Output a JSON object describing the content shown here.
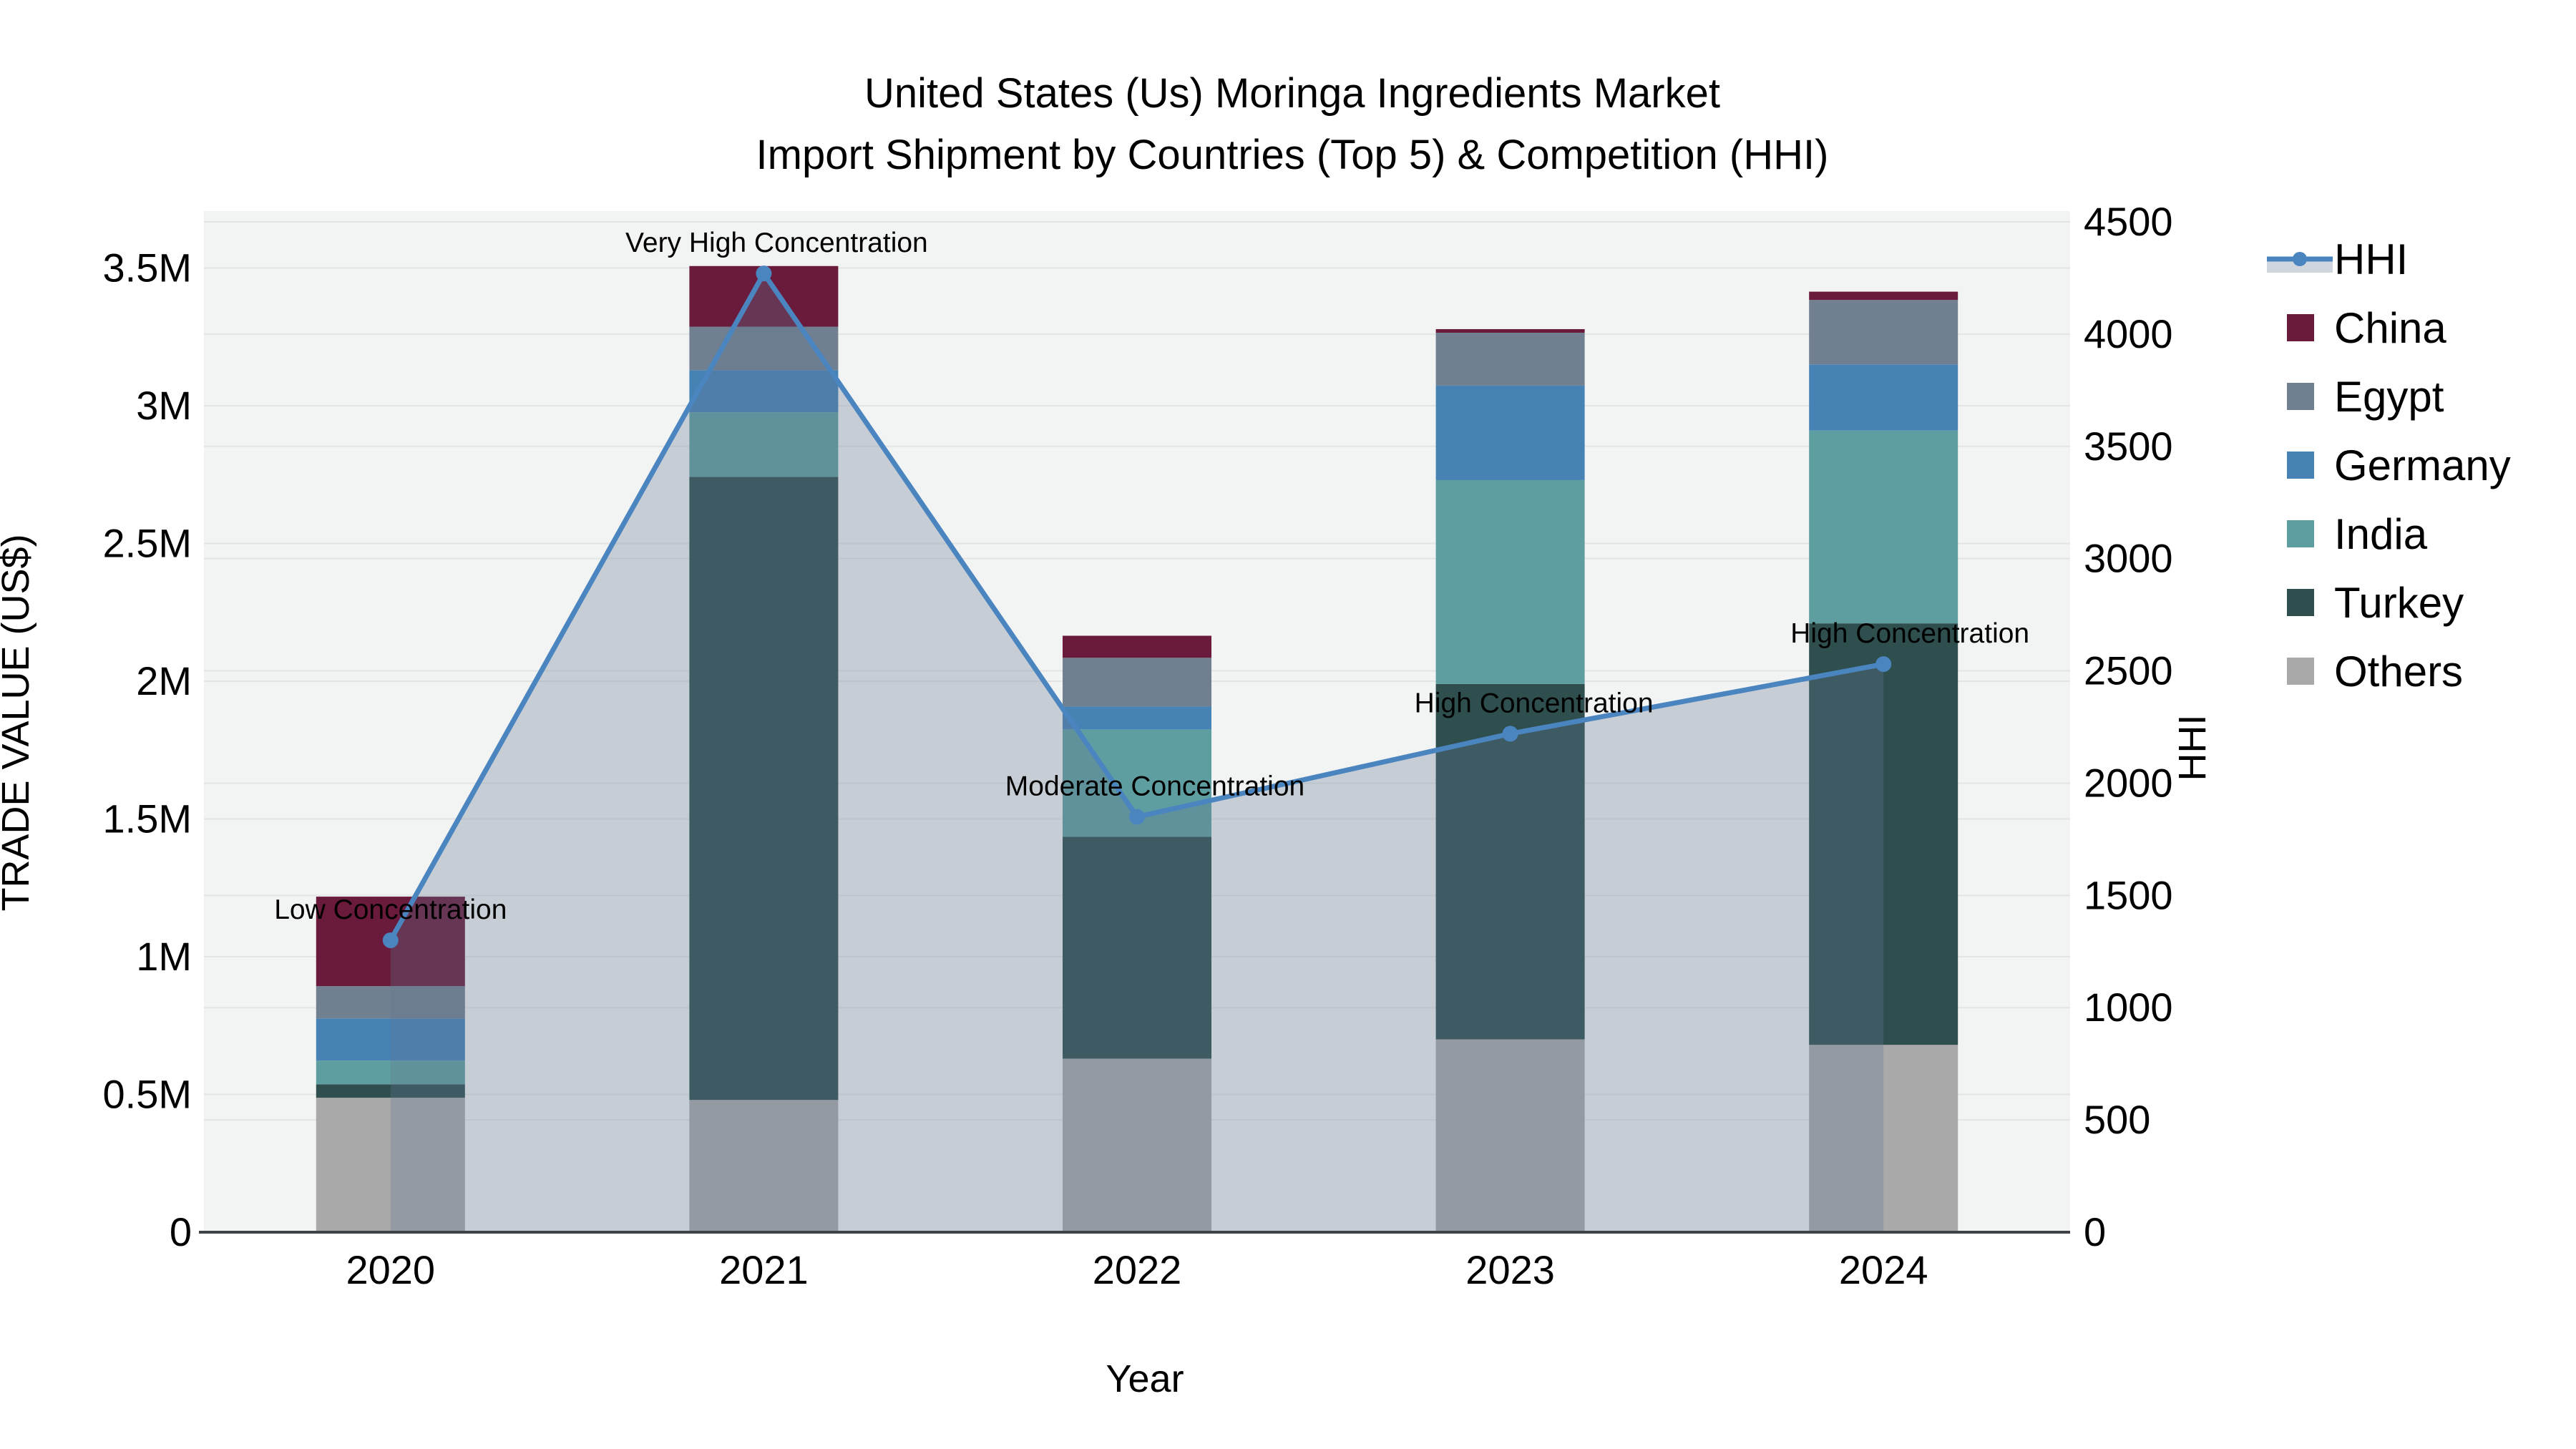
{
  "title": {
    "line1": "United States (Us) Moringa Ingredients Market",
    "line2": "Import Shipment by Countries (Top 5) & Competition (HHI)"
  },
  "chart_data": {
    "type": "bar-stacked+line",
    "categories": [
      "2020",
      "2021",
      "2022",
      "2023",
      "2024"
    ],
    "bar_value_unit": "Million US$",
    "series": [
      {
        "name": "China",
        "color": "#6a1b3b",
        "values": [
          0.325,
          0.22,
          0.08,
          0.013,
          0.03
        ]
      },
      {
        "name": "Egypt",
        "color": "#708090",
        "values": [
          0.117,
          0.158,
          0.177,
          0.192,
          0.234
        ]
      },
      {
        "name": "Germany",
        "color": "#4682b4",
        "values": [
          0.153,
          0.153,
          0.083,
          0.343,
          0.24
        ]
      },
      {
        "name": "India",
        "color": "#5f9ea0",
        "values": [
          0.086,
          0.234,
          0.39,
          0.74,
          0.7
        ]
      },
      {
        "name": "Turkey",
        "color": "#2f4f4f",
        "values": [
          0.049,
          2.262,
          0.805,
          1.29,
          1.53
        ]
      },
      {
        "name": "Others",
        "color": "#a9a9a9",
        "values": [
          0.488,
          0.48,
          0.63,
          0.7,
          0.68
        ]
      }
    ],
    "bar_totals": [
      1.218,
      3.507,
      2.165,
      3.278,
      3.414
    ],
    "line_series": {
      "name": "HHI",
      "color": "#4b85c0",
      "fill_color": "rgba(100,120,145,0.30)",
      "values": [
        1300,
        4270,
        1850,
        2220,
        2530
      ]
    },
    "annotations": [
      {
        "category": "2020",
        "label": "Low Concentration"
      },
      {
        "category": "2021",
        "label": "Very High Concentration"
      },
      {
        "category": "2022",
        "label": "Moderate Concentration"
      },
      {
        "category": "2023",
        "label": "High Concentration"
      },
      {
        "category": "2024",
        "label": "High Concentration"
      }
    ],
    "x_axis": {
      "title": "Year",
      "tick_labels": [
        "2020",
        "2021",
        "2022",
        "2023",
        "2024"
      ]
    },
    "y_left": {
      "title": "TRADE VALUE (US$)",
      "range": [
        0,
        3.7
      ],
      "ticks": [
        {
          "v": 0,
          "label": "0"
        },
        {
          "v": 0.5,
          "label": "0.5M"
        },
        {
          "v": 1,
          "label": "1M"
        },
        {
          "v": 1.5,
          "label": "1.5M"
        },
        {
          "v": 2,
          "label": "2M"
        },
        {
          "v": 2.5,
          "label": "2.5M"
        },
        {
          "v": 3,
          "label": "3M"
        },
        {
          "v": 3.5,
          "label": "3.5M"
        }
      ]
    },
    "y_right": {
      "title": "HHI",
      "range": [
        0,
        4500
      ],
      "ticks": [
        {
          "v": 0,
          "label": "0"
        },
        {
          "v": 500,
          "label": "500"
        },
        {
          "v": 1000,
          "label": "1000"
        },
        {
          "v": 1500,
          "label": "1500"
        },
        {
          "v": 2000,
          "label": "2000"
        },
        {
          "v": 2500,
          "label": "2500"
        },
        {
          "v": 3000,
          "label": "3000"
        },
        {
          "v": 3500,
          "label": "3500"
        },
        {
          "v": 4000,
          "label": "4000"
        },
        {
          "v": 4500,
          "label": "4500"
        }
      ]
    },
    "legend_order": [
      "HHI",
      "China",
      "Egypt",
      "Germany",
      "India",
      "Turkey",
      "Others"
    ],
    "grid": true,
    "legend_position": "right",
    "plot_bg_color": "#f2f3f3",
    "grid_color": "#e3e5e5",
    "axis_line_color": "#3f4347"
  }
}
